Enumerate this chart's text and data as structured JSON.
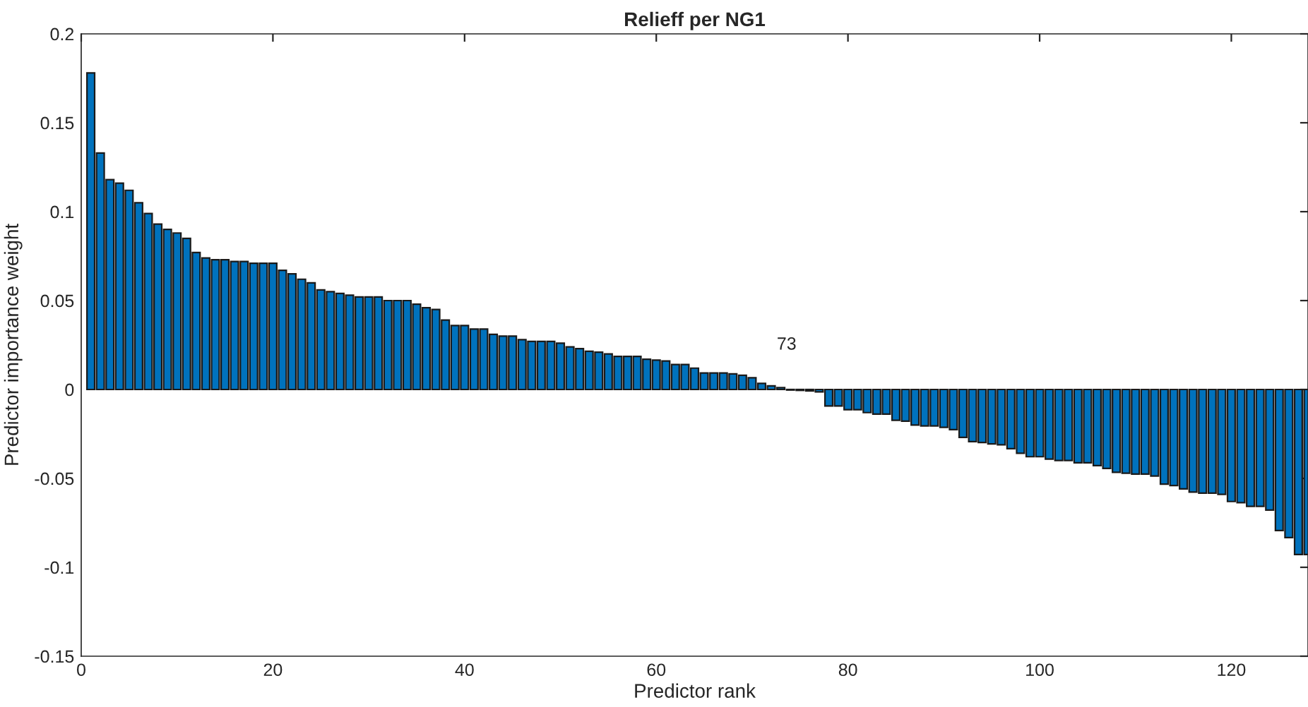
{
  "chart_data": {
    "type": "bar",
    "title": "Relieff per NG1",
    "xlabel": "Predictor rank",
    "ylabel": "Predictor importance weight",
    "x": [
      1,
      2,
      3,
      4,
      5,
      6,
      7,
      8,
      9,
      10,
      11,
      12,
      13,
      14,
      15,
      16,
      17,
      18,
      19,
      20,
      21,
      22,
      23,
      24,
      25,
      26,
      27,
      28,
      29,
      30,
      31,
      32,
      33,
      34,
      35,
      36,
      37,
      38,
      39,
      40,
      41,
      42,
      43,
      44,
      45,
      46,
      47,
      48,
      49,
      50,
      51,
      52,
      53,
      54,
      55,
      56,
      57,
      58,
      59,
      60,
      61,
      62,
      63,
      64,
      65,
      66,
      67,
      68,
      69,
      70,
      71,
      72,
      73,
      74,
      75,
      76,
      77,
      78,
      79,
      80,
      81,
      82,
      83,
      84,
      85,
      86,
      87,
      88,
      89,
      90,
      91,
      92,
      93,
      94,
      95,
      96,
      97,
      98,
      99,
      100,
      101,
      102,
      103,
      104,
      105,
      106,
      107,
      108,
      109,
      110,
      111,
      112,
      113,
      114,
      115,
      116,
      117,
      118,
      119,
      120,
      121,
      122,
      123,
      124,
      125,
      126,
      127,
      128
    ],
    "values": [
      0.178,
      0.133,
      0.118,
      0.116,
      0.112,
      0.105,
      0.099,
      0.093,
      0.09,
      0.088,
      0.085,
      0.077,
      0.074,
      0.073,
      0.073,
      0.072,
      0.072,
      0.071,
      0.071,
      0.071,
      0.067,
      0.065,
      0.062,
      0.06,
      0.056,
      0.055,
      0.054,
      0.053,
      0.052,
      0.052,
      0.052,
      0.05,
      0.05,
      0.05,
      0.048,
      0.046,
      0.045,
      0.039,
      0.036,
      0.036,
      0.034,
      0.034,
      0.031,
      0.03,
      0.03,
      0.028,
      0.027,
      0.027,
      0.027,
      0.026,
      0.024,
      0.023,
      0.0215,
      0.021,
      0.02,
      0.0186,
      0.0186,
      0.0186,
      0.017,
      0.0165,
      0.016,
      0.014,
      0.014,
      0.012,
      0.0093,
      0.0093,
      0.0093,
      0.0088,
      0.008,
      0.0066,
      0.0034,
      0.002,
      0.001,
      -0.0003,
      -0.0005,
      -0.0008,
      -0.0013,
      -0.0093,
      -0.0093,
      -0.0114,
      -0.0114,
      -0.013,
      -0.0138,
      -0.0138,
      -0.0173,
      -0.0178,
      -0.02,
      -0.0205,
      -0.0205,
      -0.0213,
      -0.0226,
      -0.0269,
      -0.0293,
      -0.0298,
      -0.0306,
      -0.0311,
      -0.0333,
      -0.0359,
      -0.0378,
      -0.0378,
      -0.0391,
      -0.0399,
      -0.0399,
      -0.0412,
      -0.0412,
      -0.0428,
      -0.0444,
      -0.0466,
      -0.0471,
      -0.0476,
      -0.0476,
      -0.0487,
      -0.0532,
      -0.054,
      -0.0559,
      -0.0577,
      -0.0583,
      -0.0583,
      -0.059,
      -0.063,
      -0.0636,
      -0.0657,
      -0.0657,
      -0.0678,
      -0.0793,
      -0.0833,
      -0.0928,
      -0.0928
    ],
    "color": "#0072bd",
    "xlim": [
      0,
      128
    ],
    "xticks": [
      0,
      20,
      40,
      60,
      80,
      100,
      120
    ],
    "ylim": [
      -0.15,
      0.2
    ],
    "yticks": [
      -0.15,
      -0.1,
      -0.05,
      0,
      0.05,
      0.1,
      0.15,
      0.2
    ],
    "annotations": [
      "73"
    ],
    "grid": false,
    "legend": false
  }
}
